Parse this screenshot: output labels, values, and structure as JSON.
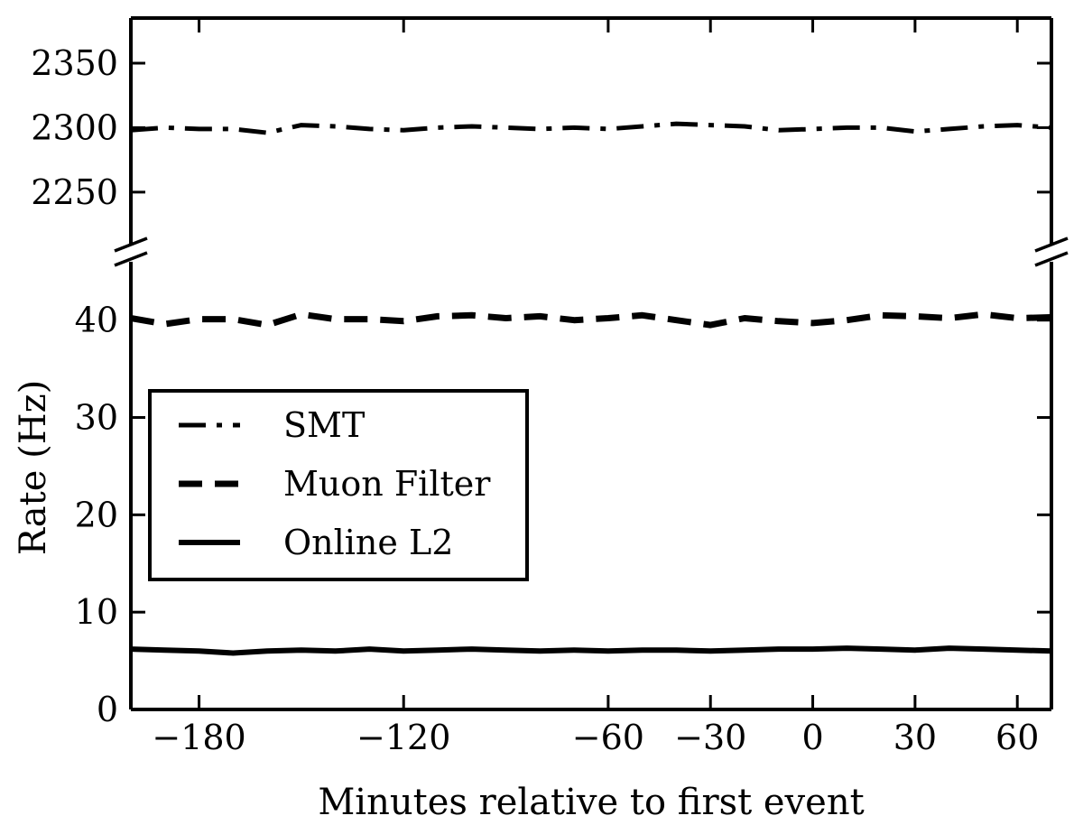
{
  "chart_data": {
    "type": "line",
    "xlabel": "Minutes relative to first event",
    "ylabel": "Rate (Hz)",
    "xlim": [
      -200,
      70
    ],
    "x_ticks": [
      -180,
      -120,
      -60,
      -30,
      0,
      30,
      60
    ],
    "x_tick_labels": [
      "−180",
      "−120",
      "−60",
      "−30",
      "0",
      "30",
      "60"
    ],
    "broken_y_axis": true,
    "upper_panel": {
      "ylim": [
        2210,
        2385
      ],
      "y_ticks": [
        2250,
        2300,
        2350
      ],
      "y_tick_labels": [
        "2250",
        "2300",
        "2350"
      ]
    },
    "lower_panel": {
      "ylim": [
        0,
        46
      ],
      "y_ticks": [
        0,
        10,
        20,
        30,
        40
      ],
      "y_tick_labels": [
        "0",
        "10",
        "20",
        "30",
        "40"
      ]
    },
    "x": [
      -200,
      -190,
      -180,
      -170,
      -160,
      -150,
      -140,
      -130,
      -120,
      -110,
      -100,
      -90,
      -80,
      -70,
      -60,
      -50,
      -40,
      -30,
      -20,
      -10,
      0,
      10,
      20,
      30,
      40,
      50,
      60,
      70
    ],
    "series": [
      {
        "name": "SMT",
        "panel": "upper",
        "style": "dashdot",
        "values": [
          2298,
          2300,
          2299,
          2299,
          2296,
          2302,
          2301,
          2299,
          2298,
          2300,
          2301,
          2300,
          2299,
          2300,
          2299,
          2301,
          2303,
          2302,
          2301,
          2298,
          2299,
          2300,
          2300,
          2297,
          2299,
          2301,
          2302,
          2300
        ]
      },
      {
        "name": "Muon Filter",
        "panel": "lower",
        "style": "dashed",
        "values": [
          40.2,
          39.6,
          40.1,
          40.1,
          39.5,
          40.6,
          40.1,
          40.1,
          39.9,
          40.4,
          40.5,
          40.2,
          40.4,
          40.0,
          40.2,
          40.5,
          40.0,
          39.5,
          40.2,
          39.9,
          39.7,
          40.0,
          40.5,
          40.4,
          40.2,
          40.6,
          40.2,
          40.3
        ]
      },
      {
        "name": "Online L2",
        "panel": "lower",
        "style": "solid",
        "values": [
          6.2,
          6.1,
          6.0,
          5.8,
          6.0,
          6.1,
          6.0,
          6.2,
          6.0,
          6.1,
          6.2,
          6.1,
          6.0,
          6.1,
          6.0,
          6.1,
          6.1,
          6.0,
          6.1,
          6.2,
          6.2,
          6.3,
          6.2,
          6.1,
          6.3,
          6.2,
          6.1,
          6.0
        ]
      }
    ],
    "legend": {
      "placement": "center-left",
      "entries": [
        "SMT",
        "Muon Filter",
        "Online L2"
      ]
    },
    "grid": false
  }
}
